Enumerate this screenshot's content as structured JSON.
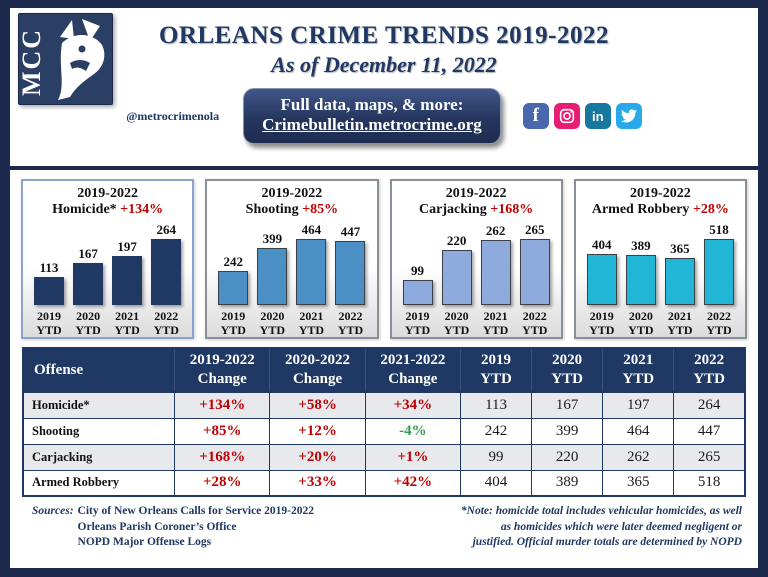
{
  "colors": {
    "navy": "#1F3864",
    "frame": "#1B2A4C",
    "red": "#C00000",
    "green": "#2F9E4F",
    "row_alt": "#E8E9ED"
  },
  "header": {
    "logo_text": "MCC",
    "title": "ORLEANS CRIME TRENDS 2019-2022",
    "subtitle": "As of December 11, 2022",
    "handle": "@metrocrimenola",
    "banner_line1": "Full data, maps, & more:",
    "banner_line2": "Crimebulletin.metrocrime.org",
    "social": [
      {
        "name": "facebook",
        "color": "#4A67AD"
      },
      {
        "name": "instagram",
        "color": "#E91E73"
      },
      {
        "name": "linkedin",
        "color": "#16789E"
      },
      {
        "name": "twitter",
        "color": "#29A9EA"
      }
    ]
  },
  "chart_data": [
    {
      "type": "bar",
      "title": "2019-2022",
      "name": "Homicide*",
      "change": "+134%",
      "categories": [
        "2019\nYTD",
        "2020\nYTD",
        "2021\nYTD",
        "2022\nYTD"
      ],
      "values": [
        113,
        167,
        197,
        264
      ],
      "bar_color": "#1F3864",
      "bar_border": "#1F3864",
      "border_color": "#8CA3CC"
    },
    {
      "type": "bar",
      "title": "2019-2022",
      "name": "Shooting",
      "change": "+85%",
      "categories": [
        "2019\nYTD",
        "2020\nYTD",
        "2021\nYTD",
        "2022\nYTD"
      ],
      "values": [
        242,
        399,
        464,
        447
      ],
      "bar_color": "#4A90C5",
      "bar_border": "#3C4147",
      "border_color": "#8A9099"
    },
    {
      "type": "bar",
      "title": "2019-2022",
      "name": "Carjacking",
      "change": "+168%",
      "categories": [
        "2019\nYTD",
        "2020\nYTD",
        "2021\nYTD",
        "2022\nYTD"
      ],
      "values": [
        99,
        220,
        262,
        265
      ],
      "bar_color": "#8FAADC",
      "bar_border": "#3C4147",
      "border_color": "#8A9099"
    },
    {
      "type": "bar",
      "title": "2019-2022",
      "name": "Armed Robbery",
      "change": "+28%",
      "categories": [
        "2019\nYTD",
        "2020\nYTD",
        "2021\nYTD",
        "2022\nYTD"
      ],
      "values": [
        404,
        389,
        365,
        518
      ],
      "bar_color": "#22B6D6",
      "bar_border": "#3C4147",
      "border_color": "#8A9099"
    }
  ],
  "table": {
    "headers": [
      "Offense",
      "2019-2022\nChange",
      "2020-2022\nChange",
      "2021-2022\nChange",
      "2019\nYTD",
      "2020\nYTD",
      "2021\nYTD",
      "2022\nYTD"
    ],
    "rows": [
      {
        "offense": "Homicide*",
        "changes": [
          "+134%",
          "+58%",
          "+34%"
        ],
        "change_colors": [
          "red",
          "red",
          "red"
        ],
        "ytd": [
          113,
          167,
          197,
          264
        ]
      },
      {
        "offense": "Shooting",
        "changes": [
          "+85%",
          "+12%",
          "-4%"
        ],
        "change_colors": [
          "red",
          "red",
          "green"
        ],
        "ytd": [
          242,
          399,
          464,
          447
        ]
      },
      {
        "offense": "Carjacking",
        "changes": [
          "+168%",
          "+20%",
          "+1%"
        ],
        "change_colors": [
          "red",
          "red",
          "red"
        ],
        "ytd": [
          99,
          220,
          262,
          265
        ]
      },
      {
        "offense": "Armed Robbery",
        "changes": [
          "+28%",
          "+33%",
          "+42%"
        ],
        "change_colors": [
          "red",
          "red",
          "red"
        ],
        "ytd": [
          404,
          389,
          365,
          518
        ]
      }
    ]
  },
  "footer": {
    "sources_label": "Sources:",
    "sources": [
      "City of New Orleans Calls for Service 2019-2022",
      "Orleans Parish Coroner’s Office",
      "NOPD Major Offense Logs"
    ],
    "note": "*Note: homicide total includes vehicular homicides, as well as homicides which were later deemed negligent or justified.  Official murder totals are determined by NOPD"
  }
}
